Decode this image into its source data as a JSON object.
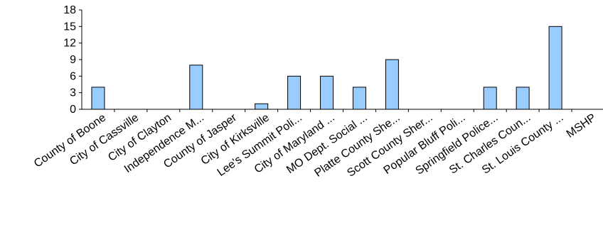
{
  "chart_data": {
    "type": "bar",
    "categories": [
      "County of Boone",
      "City of Cassville",
      "City of Clayton",
      "Independence M...",
      "County of Jasper",
      "City of Kirksville",
      "Lee's Summit Poli...",
      "City of Maryland ...",
      "MO Dept. Social ...",
      "Platte County She...",
      "Scott County Sher...",
      "Popular Bluff Poli...",
      "Springfield Police...",
      "St. Charles Coun...",
      "St. Louis County ...",
      "MSHP"
    ],
    "values": [
      4,
      0,
      0,
      8,
      0,
      1,
      6,
      6,
      4,
      9,
      0,
      0,
      4,
      4,
      15,
      0
    ],
    "title": "",
    "xlabel": "",
    "ylabel": "",
    "ylim": [
      0,
      18
    ],
    "yticks": [
      "0",
      "3",
      "6",
      "9",
      "12",
      "15",
      "18"
    ],
    "grid": false,
    "legend": "none",
    "colors": {
      "bar_fill": "#99CCFF",
      "bar_stroke": "#000000",
      "axis": "#000000"
    }
  }
}
